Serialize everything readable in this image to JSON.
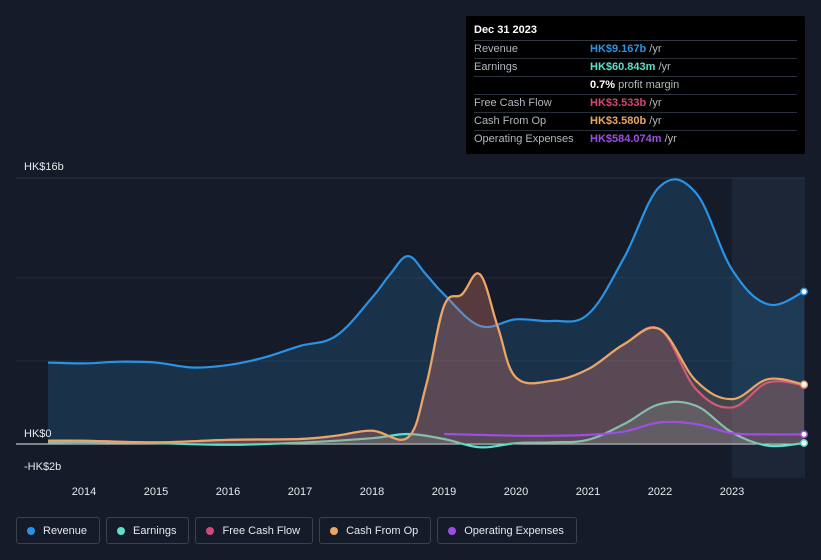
{
  "chart_data": {
    "type": "area",
    "title": "",
    "xlabel": "",
    "ylabel": "",
    "ylim": [
      -2,
      16
    ],
    "y_axis_labels": {
      "top": "HK$16b",
      "zero": "HK$0",
      "bottom": "-HK$2b"
    },
    "x_ticks": [
      "2014",
      "2015",
      "2016",
      "2017",
      "2018",
      "2019",
      "2020",
      "2021",
      "2022",
      "2023"
    ],
    "x_tick_values": [
      2014,
      2015,
      2016,
      2017,
      2018,
      2019,
      2020,
      2021,
      2022,
      2023
    ],
    "highlight_start": 2023.0,
    "series": [
      {
        "name": "Revenue",
        "color": "#2a93e6",
        "fill": true,
        "x": [
          2013.5,
          2014.0,
          2014.5,
          2015.0,
          2015.5,
          2016.0,
          2016.5,
          2017.0,
          2017.5,
          2018.0,
          2018.25,
          2018.5,
          2018.75,
          2019.0,
          2019.5,
          2020.0,
          2020.5,
          2021.0,
          2021.5,
          2022.0,
          2022.5,
          2023.0,
          2023.5,
          2024.0
        ],
        "values": [
          4.9,
          4.85,
          4.95,
          4.9,
          4.6,
          4.75,
          5.2,
          5.9,
          6.5,
          8.8,
          10.2,
          11.3,
          10.2,
          9.0,
          7.1,
          7.5,
          7.4,
          7.8,
          11.2,
          15.5,
          15.1,
          10.5,
          8.4,
          9.167
        ]
      },
      {
        "name": "Earnings",
        "color": "#5fdfc9",
        "fill": true,
        "x": [
          2013.5,
          2014.0,
          2015.0,
          2016.0,
          2017.0,
          2018.0,
          2018.5,
          2019.0,
          2019.5,
          2020.0,
          2020.5,
          2021.0,
          2021.5,
          2022.0,
          2022.5,
          2023.0,
          2023.5,
          2024.0
        ],
        "values": [
          0.1,
          0.12,
          0.05,
          -0.05,
          0.08,
          0.35,
          0.6,
          0.3,
          -0.2,
          0.05,
          0.1,
          0.25,
          1.2,
          2.4,
          2.3,
          0.7,
          -0.1,
          0.061
        ]
      },
      {
        "name": "Free Cash Flow",
        "color": "#d1487a",
        "fill": true,
        "x": [
          2013.5,
          2014.0,
          2015.0,
          2016.0,
          2017.0,
          2017.5,
          2018.0,
          2018.5,
          2018.75,
          2019.0,
          2019.25,
          2019.5,
          2019.75,
          2020.0,
          2020.5,
          2021.0,
          2021.5,
          2022.0,
          2022.5,
          2023.0,
          2023.5,
          2024.0
        ],
        "values": [
          0.2,
          0.2,
          0.1,
          0.25,
          0.3,
          0.5,
          0.8,
          0.4,
          3.5,
          8.3,
          9.0,
          10.2,
          7.0,
          4.0,
          3.8,
          4.5,
          6.0,
          6.9,
          3.3,
          2.2,
          3.7,
          3.533
        ]
      },
      {
        "name": "Cash From Op",
        "color": "#e8a765",
        "fill": true,
        "x": [
          2013.5,
          2014.0,
          2015.0,
          2016.0,
          2017.0,
          2017.5,
          2018.0,
          2018.5,
          2018.75,
          2019.0,
          2019.25,
          2019.5,
          2019.75,
          2020.0,
          2020.5,
          2021.0,
          2021.5,
          2022.0,
          2022.5,
          2023.0,
          2023.5,
          2024.0
        ],
        "values": [
          0.2,
          0.2,
          0.1,
          0.25,
          0.3,
          0.5,
          0.8,
          0.4,
          3.5,
          8.3,
          9.0,
          10.2,
          7.0,
          4.0,
          3.8,
          4.5,
          6.0,
          6.9,
          3.8,
          2.7,
          3.9,
          3.58
        ]
      },
      {
        "name": "Operating Expenses",
        "color": "#9d4ee8",
        "fill": false,
        "x": [
          2019.0,
          2019.5,
          2020.0,
          2020.5,
          2021.0,
          2021.5,
          2022.0,
          2022.5,
          2023.0,
          2023.5,
          2024.0
        ],
        "values": [
          0.6,
          0.55,
          0.5,
          0.5,
          0.55,
          0.75,
          1.3,
          1.2,
          0.65,
          0.58,
          0.584
        ]
      }
    ]
  },
  "tooltip": {
    "date": "Dec 31 2023",
    "rows": [
      {
        "label": "Revenue",
        "value": "HK$9.167b",
        "suffix": "/yr",
        "color": "#2a93e6"
      },
      {
        "label": "Earnings",
        "value": "HK$60.843m",
        "suffix": "/yr",
        "color": "#5fdfc9"
      },
      {
        "label": "",
        "value": "0.7%",
        "suffix": "profit margin",
        "color": "#ffffff"
      },
      {
        "label": "Free Cash Flow",
        "value": "HK$3.533b",
        "suffix": "/yr",
        "color": "#d1487a"
      },
      {
        "label": "Cash From Op",
        "value": "HK$3.580b",
        "suffix": "/yr",
        "color": "#e8a765"
      },
      {
        "label": "Operating Expenses",
        "value": "HK$584.074m",
        "suffix": "/yr",
        "color": "#9d4ee8"
      }
    ]
  },
  "legend": [
    {
      "label": "Revenue",
      "color": "#2a93e6"
    },
    {
      "label": "Earnings",
      "color": "#5fdfc9"
    },
    {
      "label": "Free Cash Flow",
      "color": "#d1487a"
    },
    {
      "label": "Cash From Op",
      "color": "#e8a765"
    },
    {
      "label": "Operating Expenses",
      "color": "#9d4ee8"
    }
  ]
}
